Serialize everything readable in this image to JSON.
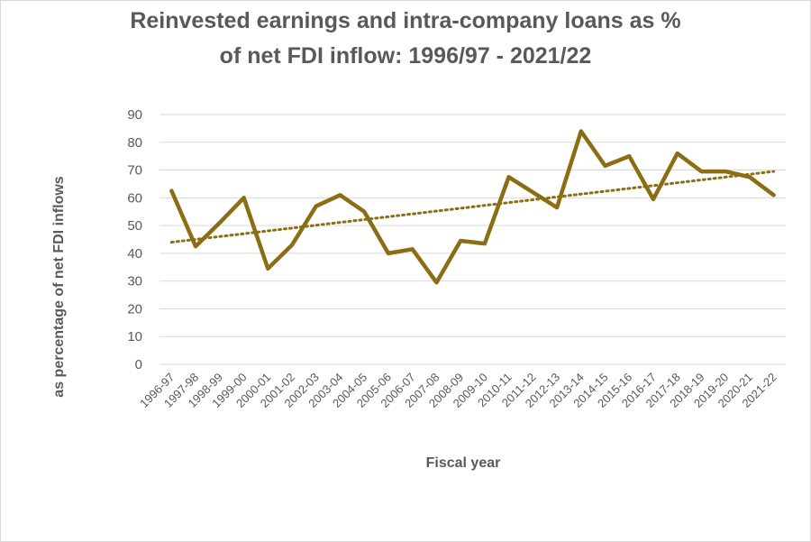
{
  "chart_data": {
    "type": "line",
    "title_line1": "Reinvested earnings and intra-company loans as %",
    "title_line2": "of net FDI inflow: 1996/97 - 2021/22",
    "xlabel": "Fiscal year",
    "ylabel": "as percentage of net FDI inflows",
    "ylim": [
      0,
      90
    ],
    "yticks": [
      0,
      10,
      20,
      30,
      40,
      50,
      60,
      70,
      80,
      90
    ],
    "grid": true,
    "legend": "none",
    "categories": [
      "1996-97",
      "1997-98",
      "1998-99",
      "1999-00",
      "2000-01",
      "2001-02",
      "2002-03",
      "2003-04",
      "2004-05",
      "2005-06",
      "2006-07",
      "2007-08",
      "2008-09",
      "2009-10",
      "2010-11",
      "2011-12",
      "2012-13",
      "2013-14",
      "2014-15",
      "2015-16",
      "2016-17",
      "2017-18",
      "2018-19",
      "2019-20",
      "2020-21",
      "2021-22"
    ],
    "series": [
      {
        "values": [
          62.5,
          42.5,
          51,
          60,
          34.5,
          43,
          57,
          61,
          55,
          40,
          41.5,
          29.5,
          44.5,
          43.5,
          67.5,
          62,
          56.5,
          84,
          71.5,
          75,
          59.5,
          76,
          69.5,
          69.5,
          67.5,
          61
        ],
        "color": "#8B6D14"
      }
    ],
    "trendline": {
      "type": "linear",
      "style": "dotted",
      "start": 44,
      "end": 69.5,
      "color": "#8B6D14"
    },
    "grid_color": "#d9d9d9"
  }
}
